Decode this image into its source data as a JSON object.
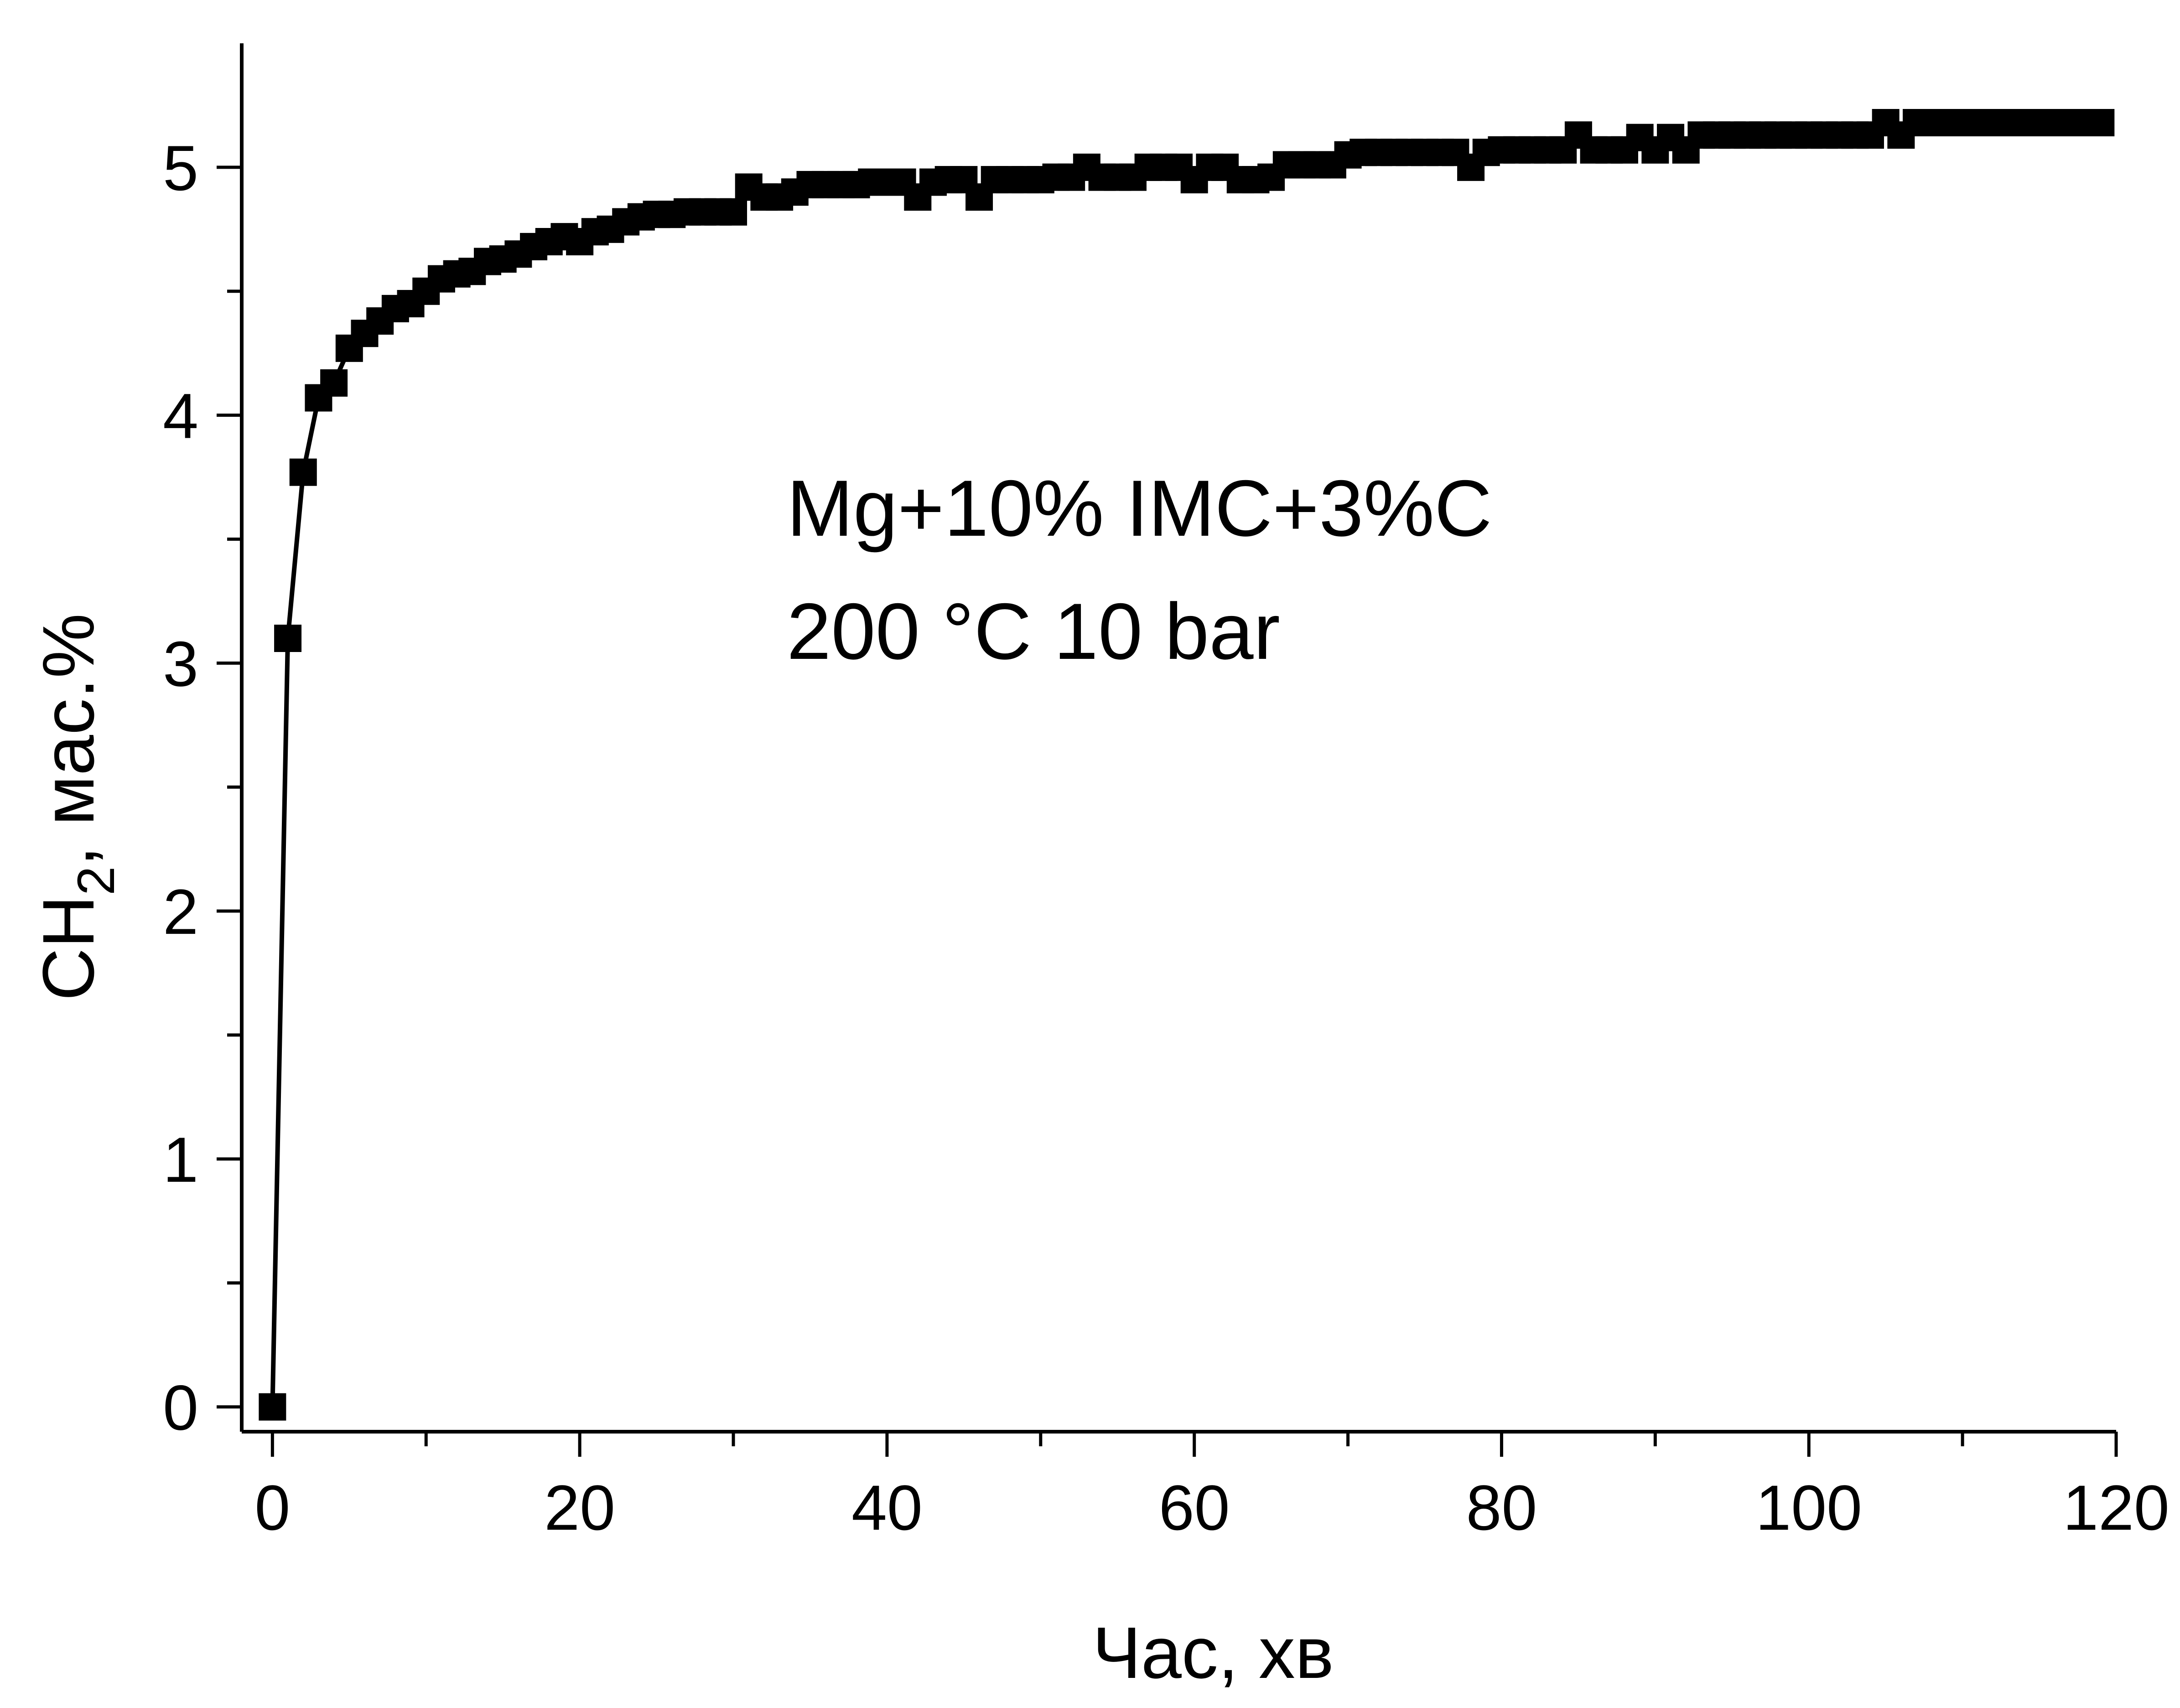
{
  "chart_data": {
    "type": "line",
    "title": "",
    "xlabel": "Час, хв",
    "ylabel": {
      "prefix": "C",
      "base": "H",
      "subscript": "2",
      "suffix": ", мас.%"
    },
    "xlim": [
      -2,
      120
    ],
    "ylim": [
      -0.1,
      5.5
    ],
    "x_ticks": [
      "0",
      "20",
      "40",
      "60",
      "80",
      "100",
      "120"
    ],
    "y_ticks": [
      "0",
      "1",
      "2",
      "3",
      "4",
      "5"
    ],
    "grid": false,
    "annotations": [
      "Mg+10% IMC+3%C",
      "200 °C 10 bar"
    ],
    "series": [
      {
        "marker": "square",
        "color": "#000000",
        "x": [
          0,
          1,
          2,
          3,
          4,
          5,
          6,
          7,
          8,
          9,
          10,
          11,
          12,
          13,
          14,
          15,
          16,
          17,
          18,
          19,
          20,
          21,
          22,
          23,
          24,
          25,
          26,
          27,
          28,
          29,
          30,
          31,
          32,
          33,
          34,
          35,
          36,
          37,
          38,
          39,
          40,
          41,
          42,
          43,
          44,
          45,
          46,
          47,
          48,
          49,
          50,
          51,
          52,
          53,
          54,
          55,
          56,
          57,
          58,
          59,
          60,
          61,
          62,
          63,
          64,
          65,
          66,
          67,
          68,
          69,
          70,
          71,
          72,
          73,
          74,
          75,
          76,
          77,
          78,
          79,
          80,
          81,
          82,
          83,
          84,
          85,
          86,
          87,
          88,
          89,
          90,
          91,
          92,
          93,
          94,
          95,
          96,
          97,
          98,
          99,
          100,
          101,
          102,
          103,
          104,
          105,
          106,
          107,
          108,
          109,
          110,
          111,
          112,
          113,
          114,
          115,
          116,
          117,
          118,
          119
        ],
        "y": [
          0,
          3.1,
          3.77,
          4.07,
          4.13,
          4.27,
          4.33,
          4.38,
          4.43,
          4.45,
          4.5,
          4.55,
          4.57,
          4.58,
          4.62,
          4.63,
          4.65,
          4.68,
          4.7,
          4.72,
          4.7,
          4.74,
          4.75,
          4.78,
          4.8,
          4.81,
          4.81,
          4.82,
          4.82,
          4.82,
          4.82,
          4.92,
          4.88,
          4.88,
          4.9,
          4.93,
          4.93,
          4.93,
          4.93,
          4.94,
          4.94,
          4.94,
          4.88,
          4.94,
          4.95,
          4.95,
          4.88,
          4.95,
          4.95,
          4.95,
          4.95,
          4.96,
          4.96,
          5.0,
          4.96,
          4.96,
          4.96,
          5.0,
          5.0,
          5.0,
          4.95,
          5.0,
          5.0,
          4.95,
          4.95,
          4.96,
          5.01,
          5.01,
          5.01,
          5.01,
          5.05,
          5.06,
          5.06,
          5.06,
          5.06,
          5.06,
          5.06,
          5.06,
          5.0,
          5.06,
          5.07,
          5.07,
          5.07,
          5.07,
          5.07,
          5.13,
          5.07,
          5.07,
          5.07,
          5.12,
          5.07,
          5.12,
          5.07,
          5.13,
          5.13,
          5.13,
          5.13,
          5.13,
          5.13,
          5.13,
          5.13,
          5.13,
          5.13,
          5.13,
          5.13,
          5.18,
          5.13,
          5.18,
          5.18,
          5.18,
          5.18,
          5.18,
          5.18,
          5.18,
          5.18,
          5.18,
          5.18,
          5.18,
          5.18,
          5.18
        ]
      }
    ]
  }
}
